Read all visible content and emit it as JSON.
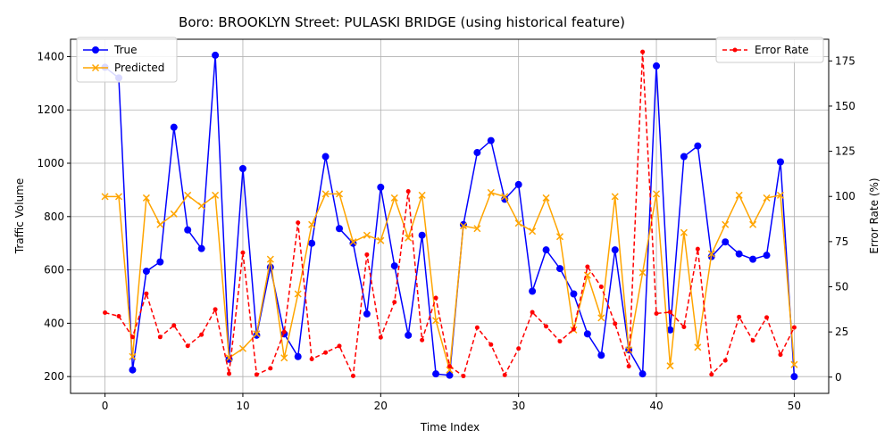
{
  "chart_data": {
    "type": "line",
    "title": "Boro: BROOKLYN Street: PULASKI BRIDGE (using historical feature)",
    "xlabel": "Time Index",
    "ylabel": "Traffic Volume",
    "y2label": "Error Rate (%)",
    "xlim": [
      -2.5,
      52.5
    ],
    "ylim": [
      137,
      1465
    ],
    "y2lim": [
      -9,
      187
    ],
    "xticks": [
      0,
      10,
      20,
      30,
      40,
      50
    ],
    "yticks": [
      200,
      400,
      600,
      800,
      1000,
      1200,
      1400
    ],
    "y2ticks": [
      0,
      25,
      50,
      75,
      100,
      125,
      150,
      175
    ],
    "grid": true,
    "legend_left": {
      "placement": "upper-left",
      "entries": [
        "True",
        "Predicted"
      ]
    },
    "legend_right": {
      "placement": "upper-right",
      "entries": [
        "Error Rate"
      ]
    },
    "x": [
      0,
      1,
      2,
      3,
      4,
      5,
      6,
      7,
      8,
      9,
      10,
      11,
      12,
      13,
      14,
      15,
      16,
      17,
      18,
      19,
      20,
      21,
      22,
      23,
      24,
      25,
      26,
      27,
      28,
      29,
      30,
      31,
      32,
      33,
      34,
      35,
      36,
      37,
      38,
      39,
      40,
      41,
      42,
      43,
      44,
      45,
      46,
      47,
      48,
      49,
      50
    ],
    "series": [
      {
        "name": "True",
        "axis": "left",
        "color": "#0000ff",
        "marker": "circle",
        "values": [
          1360,
          1320,
          225,
          595,
          630,
          1135,
          750,
          680,
          1405,
          265,
          980,
          355,
          610,
          360,
          275,
          700,
          1025,
          755,
          700,
          435,
          910,
          615,
          355,
          730,
          210,
          205,
          770,
          1040,
          1085,
          865,
          920,
          520,
          675,
          605,
          510,
          360,
          280,
          675,
          300,
          210,
          1365,
          375,
          1025,
          1065,
          650,
          705,
          660,
          640,
          655,
          1005,
          200
        ]
      },
      {
        "name": "Predicted",
        "axis": "left",
        "color": "#ffa500",
        "marker": "x",
        "values": [
          875,
          875,
          275,
          870,
          770,
          810,
          880,
          840,
          880,
          270,
          305,
          360,
          640,
          270,
          510,
          770,
          885,
          885,
          705,
          730,
          710,
          870,
          720,
          880,
          410,
          225,
          765,
          755,
          890,
          875,
          775,
          745,
          870,
          725,
          375,
          580,
          420,
          875,
          300,
          590,
          885,
          240,
          740,
          310,
          660,
          770,
          880,
          770,
          870,
          880,
          245
        ]
      },
      {
        "name": "Error Rate",
        "axis": "right",
        "color": "#ff0000",
        "marker": "dot",
        "dashed": true,
        "values": [
          35.7,
          33.7,
          22.2,
          46.2,
          22.2,
          28.6,
          17.3,
          23.5,
          37.5,
          1.9,
          68.9,
          1.4,
          4.9,
          25.0,
          85.5,
          10.0,
          13.6,
          17.2,
          0.7,
          67.8,
          22.0,
          41.5,
          102.8,
          20.5,
          43.8,
          6.0,
          0.6,
          27.4,
          18.0,
          1.2,
          15.8,
          35.9,
          28.1,
          19.8,
          26.5,
          61.1,
          50.0,
          29.6,
          6.0,
          180.0,
          35.2,
          36.0,
          27.8,
          70.9,
          1.5,
          9.2,
          33.3,
          20.3,
          33.0,
          12.4,
          27.5
        ]
      }
    ]
  }
}
